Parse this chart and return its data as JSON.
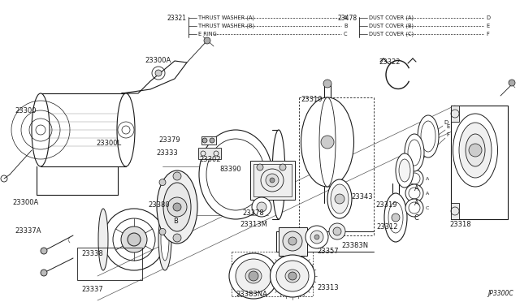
{
  "bg_color": "#ffffff",
  "text_color": "#1a1a1a",
  "line_color": "#1a1a1a",
  "diagram_code": "JP3300C",
  "figsize": [
    6.4,
    3.72
  ],
  "dpi": 100,
  "legend": {
    "left_partno": "23321",
    "left_items": [
      [
        "THRUST WASHER (A)",
        "A"
      ],
      [
        "THRUST WASHER (B)",
        "B"
      ],
      [
        "E RING",
        "C"
      ]
    ],
    "right_partno": "23478",
    "right_items": [
      [
        "DUST COVER (A)",
        "D"
      ],
      [
        "DUST COVER (B)",
        "E"
      ],
      [
        "DUST COVER (C)",
        "F"
      ]
    ]
  }
}
